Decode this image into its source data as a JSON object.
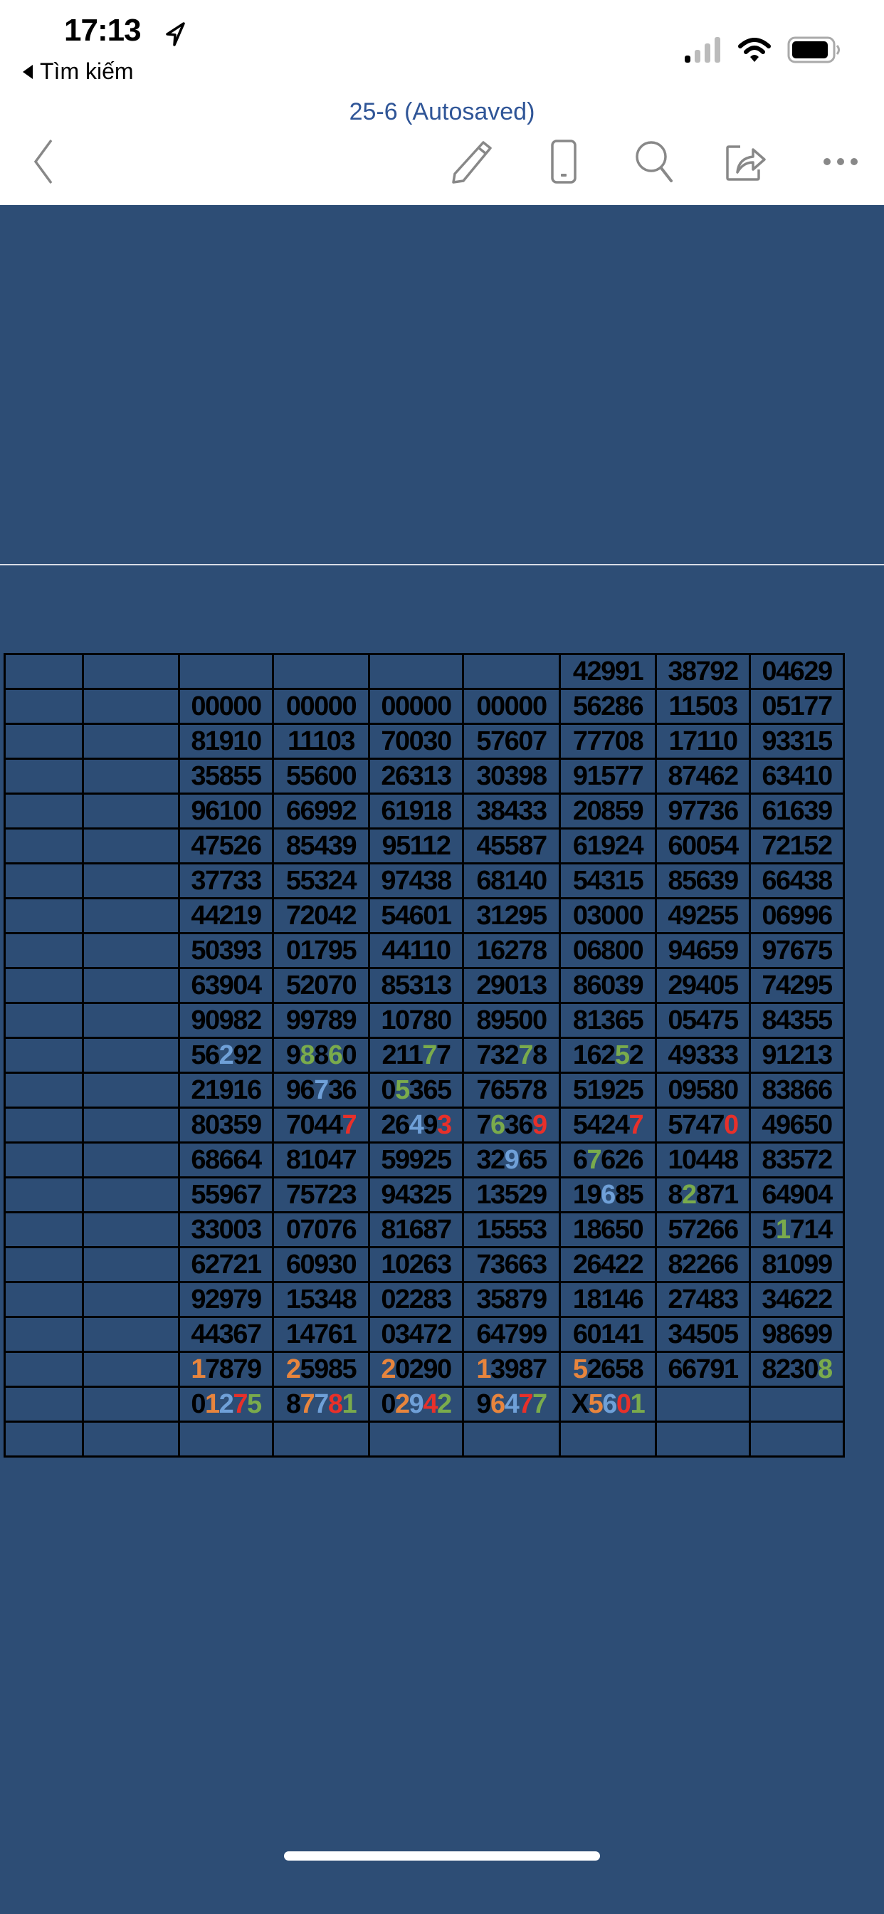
{
  "status_bar": {
    "time": "17:13",
    "back_app": "Tìm kiếm",
    "icons": [
      "location-arrow-icon",
      "signal-icon",
      "wifi-icon",
      "battery-icon"
    ]
  },
  "header": {
    "title": "25-6 (Autosaved)",
    "toolbar_icons": [
      "back-chevron-icon",
      "pencil-icon",
      "mobile-view-icon",
      "search-icon",
      "share-icon",
      "more-icon"
    ]
  },
  "colors": {
    "background": "#2d4d75",
    "title": "#2f5597",
    ".": "#000000",
    "o": "#e8853d",
    "b": "#6fa0d8",
    "g": "#7aab4c",
    "r": "#e8302a"
  },
  "table": {
    "rows": [
      [
        {
          "v": ""
        },
        {
          "v": ""
        },
        {
          "v": ""
        },
        {
          "v": ""
        },
        {
          "v": ""
        },
        {
          "v": ""
        },
        {
          "v": "42991"
        },
        {
          "v": "38792"
        },
        {
          "v": "04629"
        }
      ],
      [
        {
          "v": ""
        },
        {
          "v": ""
        },
        {
          "v": "00000"
        },
        {
          "v": "00000"
        },
        {
          "v": "00000"
        },
        {
          "v": "00000"
        },
        {
          "v": "56286"
        },
        {
          "v": "11503"
        },
        {
          "v": "05177"
        }
      ],
      [
        {
          "v": ""
        },
        {
          "v": ""
        },
        {
          "v": "81910"
        },
        {
          "v": "11103"
        },
        {
          "v": "70030"
        },
        {
          "v": "57607"
        },
        {
          "v": "77708"
        },
        {
          "v": "17110"
        },
        {
          "v": "93315"
        }
      ],
      [
        {
          "v": ""
        },
        {
          "v": ""
        },
        {
          "v": "35855"
        },
        {
          "v": "55600"
        },
        {
          "v": "26313"
        },
        {
          "v": "30398"
        },
        {
          "v": "91577"
        },
        {
          "v": "87462"
        },
        {
          "v": "63410"
        }
      ],
      [
        {
          "v": ""
        },
        {
          "v": ""
        },
        {
          "v": "96100"
        },
        {
          "v": "66992"
        },
        {
          "v": "61918"
        },
        {
          "v": "38433"
        },
        {
          "v": "20859"
        },
        {
          "v": "97736"
        },
        {
          "v": "61639"
        }
      ],
      [
        {
          "v": ""
        },
        {
          "v": ""
        },
        {
          "v": "47526"
        },
        {
          "v": "85439"
        },
        {
          "v": "95112"
        },
        {
          "v": "45587"
        },
        {
          "v": "61924"
        },
        {
          "v": "60054"
        },
        {
          "v": "72152"
        }
      ],
      [
        {
          "v": ""
        },
        {
          "v": ""
        },
        {
          "v": "37733"
        },
        {
          "v": "55324"
        },
        {
          "v": "97438"
        },
        {
          "v": "68140"
        },
        {
          "v": "54315"
        },
        {
          "v": "85639"
        },
        {
          "v": "66438"
        }
      ],
      [
        {
          "v": ""
        },
        {
          "v": ""
        },
        {
          "v": "44219"
        },
        {
          "v": "72042"
        },
        {
          "v": "54601"
        },
        {
          "v": "31295"
        },
        {
          "v": "03000"
        },
        {
          "v": "49255"
        },
        {
          "v": "06996"
        }
      ],
      [
        {
          "v": ""
        },
        {
          "v": ""
        },
        {
          "v": "50393"
        },
        {
          "v": "01795"
        },
        {
          "v": "44110"
        },
        {
          "v": "16278"
        },
        {
          "v": "06800"
        },
        {
          "v": "94659"
        },
        {
          "v": "97675"
        }
      ],
      [
        {
          "v": ""
        },
        {
          "v": ""
        },
        {
          "v": "63904"
        },
        {
          "v": "52070"
        },
        {
          "v": "85313"
        },
        {
          "v": "29013"
        },
        {
          "v": "86039"
        },
        {
          "v": "29405"
        },
        {
          "v": "74295"
        }
      ],
      [
        {
          "v": ""
        },
        {
          "v": ""
        },
        {
          "v": "90982"
        },
        {
          "v": "99789"
        },
        {
          "v": "10780"
        },
        {
          "v": "89500"
        },
        {
          "v": "81365"
        },
        {
          "v": "05475"
        },
        {
          "v": "84355"
        }
      ],
      [
        {
          "v": ""
        },
        {
          "v": ""
        },
        {
          "v": "56292",
          "c": "..b.."
        },
        {
          "v": "98860",
          "c": ".g.g."
        },
        {
          "v": "21177",
          "c": "...g."
        },
        {
          "v": "73278",
          "c": "...g."
        },
        {
          "v": "16252",
          "c": "...g."
        },
        {
          "v": "49333"
        },
        {
          "v": "91213"
        }
      ],
      [
        {
          "v": ""
        },
        {
          "v": ""
        },
        {
          "v": "21916"
        },
        {
          "v": "96736",
          "c": "..b.."
        },
        {
          "v": "05365",
          "c": ".g..."
        },
        {
          "v": "76578"
        },
        {
          "v": "51925"
        },
        {
          "v": "09580"
        },
        {
          "v": "83866"
        }
      ],
      [
        {
          "v": ""
        },
        {
          "v": ""
        },
        {
          "v": "80359"
        },
        {
          "v": "70447",
          "c": "....r"
        },
        {
          "v": "26493",
          "c": "..b.r"
        },
        {
          "v": "76369",
          "c": ".g..r"
        },
        {
          "v": "54247",
          "c": "....r"
        },
        {
          "v": "57470",
          "c": "....r"
        },
        {
          "v": "49650"
        }
      ],
      [
        {
          "v": ""
        },
        {
          "v": ""
        },
        {
          "v": "68664"
        },
        {
          "v": "81047"
        },
        {
          "v": "59925"
        },
        {
          "v": "32965",
          "c": "..b.."
        },
        {
          "v": "67626",
          "c": ".g..."
        },
        {
          "v": "10448"
        },
        {
          "v": "83572"
        }
      ],
      [
        {
          "v": ""
        },
        {
          "v": ""
        },
        {
          "v": "55967"
        },
        {
          "v": "75723"
        },
        {
          "v": "94325"
        },
        {
          "v": "13529"
        },
        {
          "v": "19685",
          "c": "..b.."
        },
        {
          "v": "82871",
          "c": ".g..."
        },
        {
          "v": "64904"
        }
      ],
      [
        {
          "v": ""
        },
        {
          "v": ""
        },
        {
          "v": "33003"
        },
        {
          "v": "07076"
        },
        {
          "v": "81687"
        },
        {
          "v": "15553"
        },
        {
          "v": "18650"
        },
        {
          "v": "57266"
        },
        {
          "v": "51714",
          "c": ".g..."
        }
      ],
      [
        {
          "v": ""
        },
        {
          "v": ""
        },
        {
          "v": "62721"
        },
        {
          "v": "60930"
        },
        {
          "v": "10263"
        },
        {
          "v": "73663"
        },
        {
          "v": "26422"
        },
        {
          "v": "82266"
        },
        {
          "v": "81099"
        }
      ],
      [
        {
          "v": ""
        },
        {
          "v": ""
        },
        {
          "v": "92979"
        },
        {
          "v": "15348"
        },
        {
          "v": "02283"
        },
        {
          "v": "35879"
        },
        {
          "v": "18146"
        },
        {
          "v": "27483"
        },
        {
          "v": "34622"
        }
      ],
      [
        {
          "v": ""
        },
        {
          "v": ""
        },
        {
          "v": "44367"
        },
        {
          "v": "14761"
        },
        {
          "v": "03472"
        },
        {
          "v": "64799"
        },
        {
          "v": "60141"
        },
        {
          "v": "34505"
        },
        {
          "v": "98699"
        }
      ],
      [
        {
          "v": ""
        },
        {
          "v": ""
        },
        {
          "v": "17879",
          "c": "o...."
        },
        {
          "v": "25985",
          "c": "o...."
        },
        {
          "v": "20290",
          "c": "o...."
        },
        {
          "v": "13987",
          "c": "o...."
        },
        {
          "v": "52658",
          "c": "o...."
        },
        {
          "v": "66791"
        },
        {
          "v": "82308",
          "c": "....g"
        }
      ],
      [
        {
          "v": ""
        },
        {
          "v": ""
        },
        {
          "v": "01275",
          "c": ".obrg"
        },
        {
          "v": "87781",
          "c": ".obrg"
        },
        {
          "v": "02942",
          "c": ".obrg"
        },
        {
          "v": "96477",
          "c": ".obrg"
        },
        {
          "v": "X5601",
          "c": ".obrg"
        },
        {
          "v": ""
        },
        {
          "v": ""
        }
      ],
      [
        {
          "v": ""
        },
        {
          "v": ""
        },
        {
          "v": ""
        },
        {
          "v": ""
        },
        {
          "v": ""
        },
        {
          "v": ""
        },
        {
          "v": ""
        },
        {
          "v": ""
        },
        {
          "v": ""
        }
      ]
    ]
  }
}
